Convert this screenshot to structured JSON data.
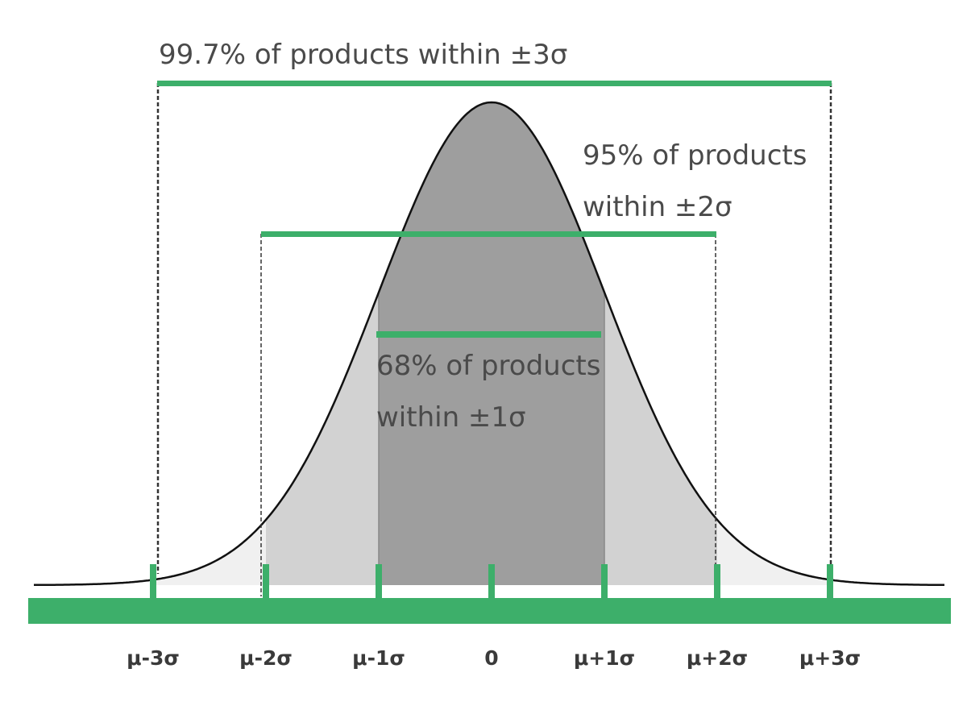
{
  "annotations": {
    "three_sigma": "99.7% of products within ±3σ",
    "two_sigma": [
      "95% of products",
      "within ±2σ"
    ],
    "one_sigma": [
      "68% of products",
      "within ±1σ"
    ]
  },
  "axis": {
    "labels": [
      "μ-3σ",
      "μ-2σ",
      "μ-1σ",
      "0",
      "μ+1σ",
      "μ+2σ",
      "μ+3σ"
    ]
  }
}
